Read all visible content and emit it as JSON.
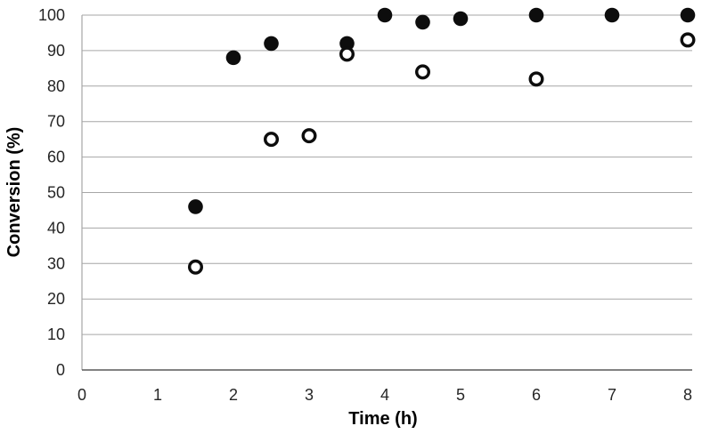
{
  "chart_data": {
    "type": "scatter",
    "title": "",
    "xlabel": "Time (h)",
    "ylabel": "Conversion (%)",
    "xlim": [
      0,
      8
    ],
    "ylim": [
      0,
      100
    ],
    "x_ticks": [
      0,
      1,
      2,
      3,
      4,
      5,
      6,
      7,
      8
    ],
    "y_ticks": [
      0,
      10,
      20,
      30,
      40,
      50,
      60,
      70,
      80,
      90,
      100
    ],
    "grid": "horizontal",
    "legend": "none",
    "series": [
      {
        "name": "solid-circle-series",
        "marker": "filled-circle",
        "color": "#0d0d0d",
        "points": [
          [
            1.5,
            46
          ],
          [
            2,
            88
          ],
          [
            2.5,
            92
          ],
          [
            3.5,
            92
          ],
          [
            4,
            100
          ],
          [
            4.5,
            98
          ],
          [
            5,
            99
          ],
          [
            6,
            100
          ],
          [
            7,
            100
          ],
          [
            8,
            100
          ]
        ]
      },
      {
        "name": "open-circle-series",
        "marker": "open-circle",
        "color": "#0d0d0d",
        "fill": "#ffffff",
        "points": [
          [
            1.5,
            29
          ],
          [
            2.5,
            65
          ],
          [
            3,
            66
          ],
          [
            3.5,
            89
          ],
          [
            4.5,
            84
          ],
          [
            6,
            82
          ],
          [
            8,
            93
          ]
        ]
      }
    ],
    "colors": {
      "background": "#ffffff",
      "gridline": "#a6a6a6",
      "axis_line": "#595959",
      "tick_label": "#262626",
      "axis_title": "#000000"
    }
  }
}
